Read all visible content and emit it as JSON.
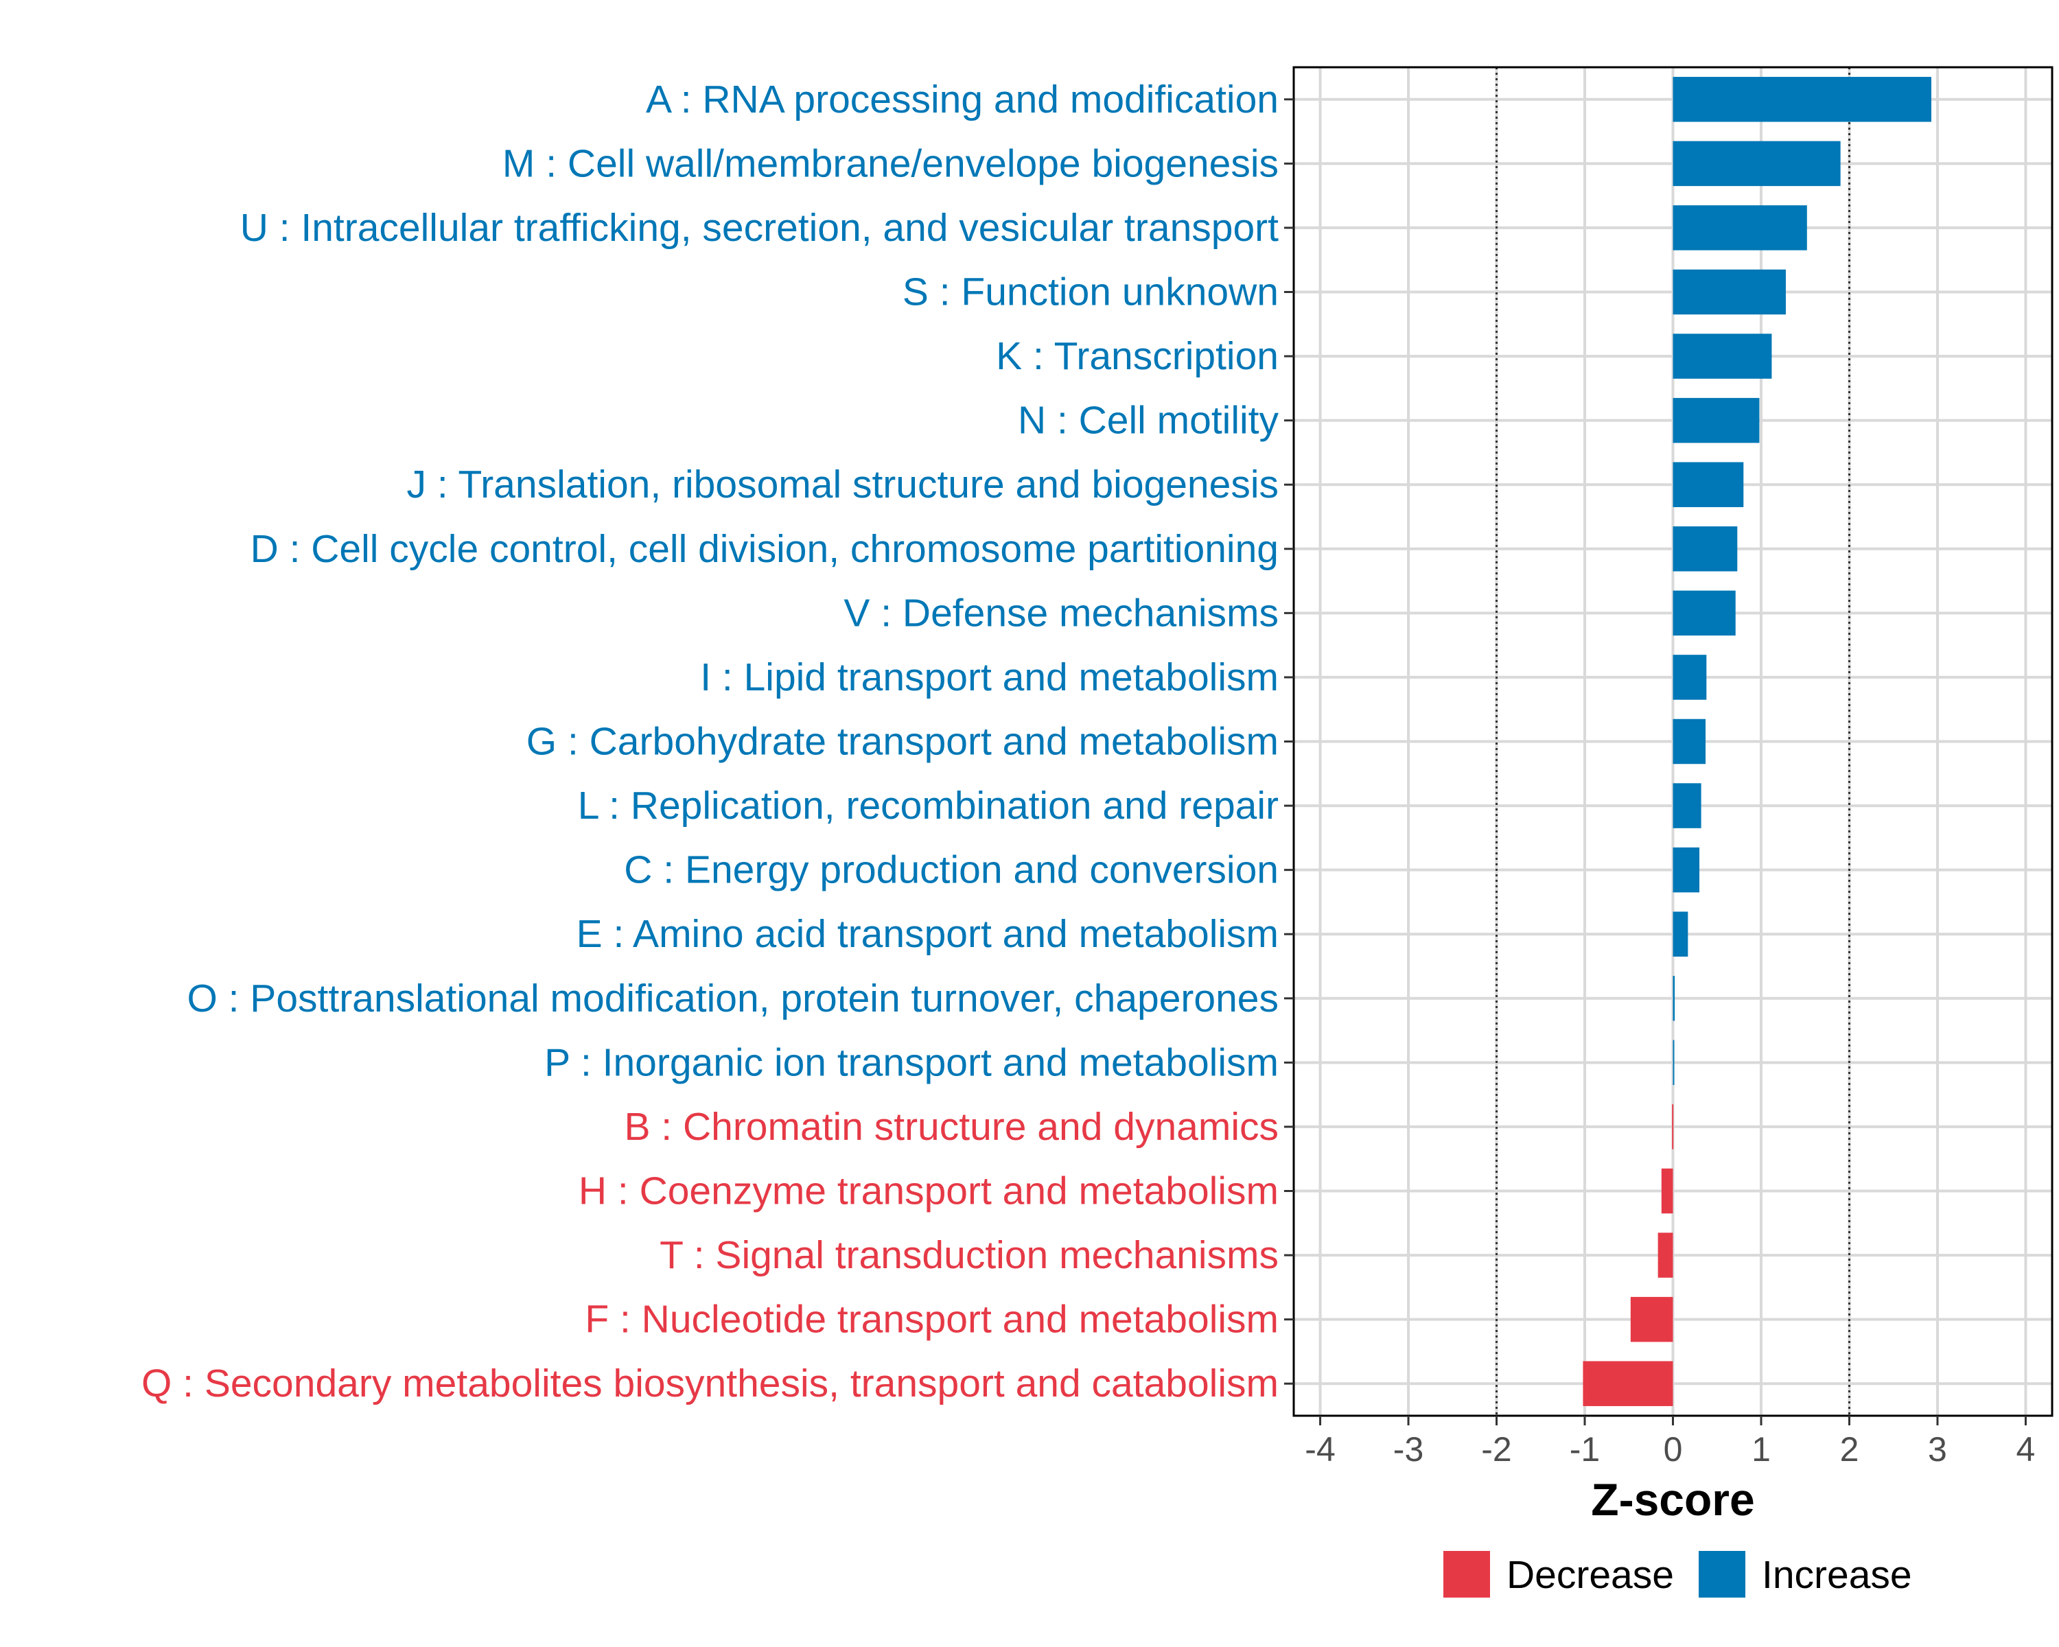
{
  "chart_data": {
    "type": "bar",
    "orientation": "horizontal",
    "xlabel": "Z-score",
    "xlim": [
      -4.3,
      4.3
    ],
    "xticks": [
      -4,
      -3,
      -2,
      -1,
      0,
      1,
      2,
      3,
      4
    ],
    "reference_lines": [
      -2,
      2
    ],
    "grid": true,
    "legend": {
      "position": "bottom",
      "entries": [
        {
          "label": "Decrease",
          "color": "#e63946"
        },
        {
          "label": "Increase",
          "color": "#0077b6"
        }
      ]
    },
    "categories": [
      "A : RNA processing and modification",
      "M : Cell wall/membrane/envelope biogenesis",
      "U : Intracellular trafficking, secretion, and vesicular transport",
      "S : Function unknown",
      "K : Transcription",
      "N : Cell motility",
      "J : Translation, ribosomal structure and biogenesis",
      "D : Cell cycle control, cell division, chromosome partitioning",
      "V : Defense mechanisms",
      "I : Lipid transport and metabolism",
      "G : Carbohydrate transport and metabolism",
      "L : Replication, recombination and repair",
      "C : Energy production and conversion",
      "E : Amino acid transport and metabolism",
      "O : Posttranslational modification, protein turnover, chaperones",
      "P : Inorganic ion transport and metabolism",
      "B : Chromatin structure and dynamics",
      "H : Coenzyme transport and metabolism",
      "T : Signal transduction mechanisms",
      "F : Nucleotide transport and metabolism",
      "Q : Secondary metabolites biosynthesis, transport and catabolism"
    ],
    "values": [
      2.93,
      1.9,
      1.52,
      1.28,
      1.12,
      0.98,
      0.8,
      0.73,
      0.71,
      0.38,
      0.37,
      0.32,
      0.3,
      0.17,
      0.02,
      0.01,
      -0.01,
      -0.13,
      -0.17,
      -0.48,
      -1.02
    ],
    "direction": [
      "Increase",
      "Increase",
      "Increase",
      "Increase",
      "Increase",
      "Increase",
      "Increase",
      "Increase",
      "Increase",
      "Increase",
      "Increase",
      "Increase",
      "Increase",
      "Increase",
      "Increase",
      "Increase",
      "Decrease",
      "Decrease",
      "Decrease",
      "Decrease",
      "Decrease"
    ]
  }
}
